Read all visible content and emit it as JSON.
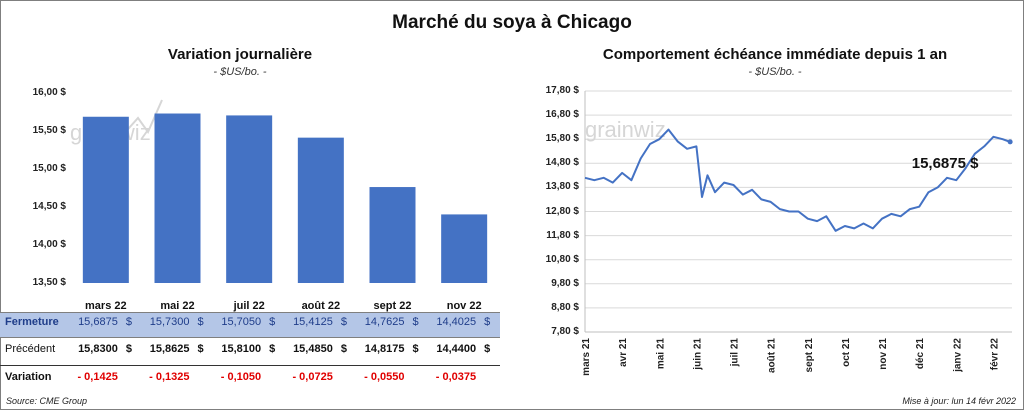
{
  "main_title": "Marché du soya à Chicago",
  "left": {
    "title": "Variation  journalière",
    "subtitle": "- $US/bo. -"
  },
  "right": {
    "title": "Comportement  échéance immédiate depuis 1 an",
    "subtitle": "- $US/bo. -",
    "callout": "15,6875 $"
  },
  "watermark": "grainwiz",
  "table": {
    "rows": [
      {
        "label": "Fermeture",
        "values": [
          "15,6875",
          "15,7300",
          "15,7050",
          "15,4125",
          "14,7625",
          "14,4025"
        ]
      },
      {
        "label": "Précédent",
        "values": [
          "15,8300",
          "15,8625",
          "15,8100",
          "15,4850",
          "14,8175",
          "14,4400"
        ]
      },
      {
        "label": "Variation",
        "values": [
          "- 0,1425",
          "- 0,1325",
          "- 0,1050",
          "- 0,0725",
          "- 0,0550",
          "- 0,0375"
        ]
      }
    ],
    "currency": "$"
  },
  "footer": {
    "source": "Source: CME Group",
    "updated": "Mise à jour: lun 14 févr 2022"
  },
  "colors": {
    "bar": "#4472c4",
    "line": "#4472c4",
    "table_highlight": "#b4c6e7",
    "negative": "#e00000"
  },
  "chart_data": [
    {
      "type": "bar",
      "categories": [
        "mars 22",
        "mai 22",
        "juil 22",
        "août 22",
        "sept 22",
        "nov 22"
      ],
      "values": [
        15.6875,
        15.73,
        15.705,
        15.4125,
        14.7625,
        14.4025
      ],
      "title": "Variation  journalière",
      "ylim": [
        13.5,
        16.0
      ],
      "yticks": [
        "16,00 $",
        "15,50 $",
        "15,00 $",
        "14,50 $",
        "14,00 $",
        "13,50 $"
      ],
      "ytick_values": [
        16.0,
        15.5,
        15.0,
        14.5,
        14.0,
        13.5
      ]
    },
    {
      "type": "line",
      "title": "Comportement  échéance immédiate depuis 1 an",
      "ylim": [
        7.8,
        17.8
      ],
      "yticks": [
        "17,80 $",
        "16,80 $",
        "15,80 $",
        "14,80 $",
        "13,80 $",
        "12,80 $",
        "11,80 $",
        "10,80 $",
        "9,80 $",
        "8,80 $",
        "7,80 $"
      ],
      "ytick_values": [
        17.8,
        16.8,
        15.8,
        14.8,
        13.8,
        12.8,
        11.8,
        10.8,
        9.8,
        8.8,
        7.8
      ],
      "xticks": [
        "mars 21",
        "avr 21",
        "mai 21",
        "juin 21",
        "juil 21",
        "août 21",
        "sept 21",
        "oct 21",
        "nov 21",
        "déc 21",
        "janv 22",
        "févr 22"
      ],
      "x_range": [
        0,
        11.5
      ],
      "x": [
        0,
        0.25,
        0.5,
        0.75,
        1.0,
        1.25,
        1.5,
        1.75,
        2.0,
        2.25,
        2.5,
        2.75,
        3.0,
        3.15,
        3.3,
        3.5,
        3.75,
        4.0,
        4.25,
        4.5,
        4.75,
        5.0,
        5.25,
        5.5,
        5.75,
        6.0,
        6.25,
        6.5,
        6.75,
        7.0,
        7.25,
        7.5,
        7.75,
        8.0,
        8.25,
        8.5,
        8.75,
        9.0,
        9.25,
        9.5,
        9.75,
        10.0,
        10.25,
        10.5,
        10.75,
        11.0,
        11.25,
        11.45
      ],
      "y": [
        14.2,
        14.1,
        14.2,
        14.0,
        14.4,
        14.1,
        15.0,
        15.6,
        15.8,
        16.2,
        15.7,
        15.4,
        15.5,
        13.4,
        14.3,
        13.6,
        14.0,
        13.9,
        13.5,
        13.7,
        13.3,
        13.2,
        12.9,
        12.8,
        12.8,
        12.5,
        12.4,
        12.6,
        12.0,
        12.2,
        12.1,
        12.3,
        12.1,
        12.5,
        12.7,
        12.6,
        12.9,
        13.0,
        13.6,
        13.8,
        14.2,
        14.1,
        14.6,
        15.2,
        15.5,
        15.9,
        15.8,
        15.6875
      ]
    }
  ]
}
